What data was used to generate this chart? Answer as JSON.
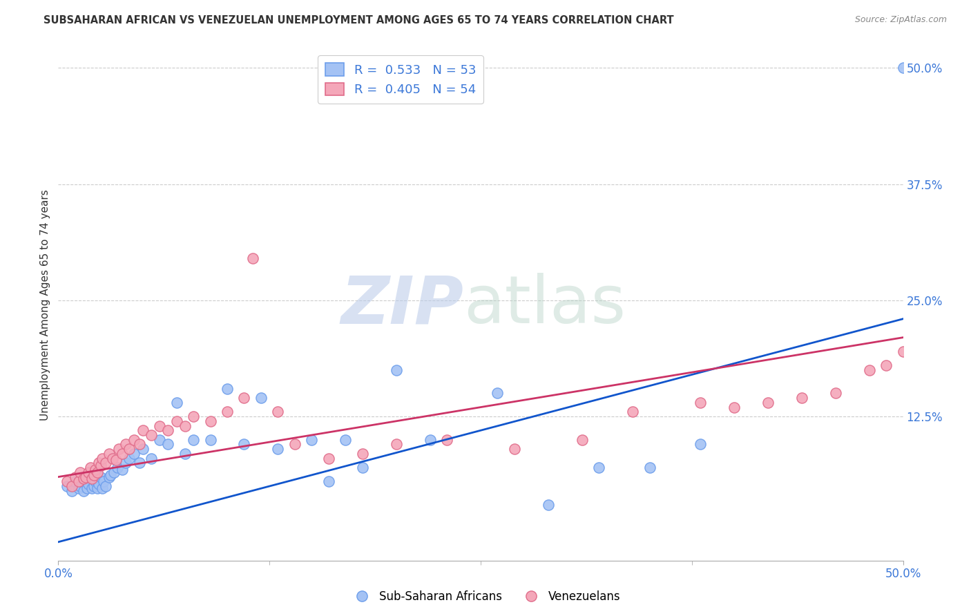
{
  "title": "SUBSAHARAN AFRICAN VS VENEZUELAN UNEMPLOYMENT AMONG AGES 65 TO 74 YEARS CORRELATION CHART",
  "source": "Source: ZipAtlas.com",
  "ylabel": "Unemployment Among Ages 65 to 74 years",
  "xlim": [
    0.0,
    0.5
  ],
  "ylim": [
    -0.03,
    0.52
  ],
  "blue_color": "#a4c2f4",
  "pink_color": "#f4a7b9",
  "blue_edge_color": "#6d9eeb",
  "pink_edge_color": "#e06c8a",
  "blue_line_color": "#1155cc",
  "pink_line_color": "#cc3366",
  "legend_blue_R": "0.533",
  "legend_blue_N": "53",
  "legend_pink_R": "0.405",
  "legend_pink_N": "54",
  "watermark_zip": "ZIP",
  "watermark_atlas": "atlas",
  "blue_scatter_x": [
    0.005,
    0.008,
    0.01,
    0.012,
    0.013,
    0.015,
    0.015,
    0.016,
    0.017,
    0.018,
    0.019,
    0.02,
    0.021,
    0.022,
    0.023,
    0.024,
    0.025,
    0.026,
    0.027,
    0.028,
    0.03,
    0.031,
    0.033,
    0.035,
    0.038,
    0.04,
    0.042,
    0.045,
    0.048,
    0.05,
    0.055,
    0.06,
    0.065,
    0.07,
    0.075,
    0.08,
    0.09,
    0.1,
    0.11,
    0.12,
    0.13,
    0.15,
    0.16,
    0.17,
    0.18,
    0.2,
    0.22,
    0.26,
    0.29,
    0.32,
    0.35,
    0.38,
    0.5
  ],
  "blue_scatter_y": [
    0.05,
    0.045,
    0.055,
    0.048,
    0.05,
    0.06,
    0.045,
    0.055,
    0.048,
    0.052,
    0.06,
    0.048,
    0.05,
    0.055,
    0.048,
    0.052,
    0.06,
    0.048,
    0.055,
    0.05,
    0.06,
    0.062,
    0.065,
    0.07,
    0.068,
    0.075,
    0.08,
    0.085,
    0.075,
    0.09,
    0.08,
    0.1,
    0.095,
    0.14,
    0.085,
    0.1,
    0.1,
    0.155,
    0.095,
    0.145,
    0.09,
    0.1,
    0.055,
    0.1,
    0.07,
    0.175,
    0.1,
    0.15,
    0.03,
    0.07,
    0.07,
    0.095,
    0.5
  ],
  "pink_scatter_x": [
    0.005,
    0.008,
    0.01,
    0.012,
    0.013,
    0.015,
    0.016,
    0.018,
    0.019,
    0.02,
    0.021,
    0.022,
    0.023,
    0.024,
    0.025,
    0.026,
    0.028,
    0.03,
    0.032,
    0.034,
    0.036,
    0.038,
    0.04,
    0.042,
    0.045,
    0.048,
    0.05,
    0.055,
    0.06,
    0.065,
    0.07,
    0.075,
    0.08,
    0.09,
    0.1,
    0.11,
    0.115,
    0.13,
    0.14,
    0.16,
    0.18,
    0.2,
    0.23,
    0.27,
    0.31,
    0.34,
    0.38,
    0.4,
    0.42,
    0.44,
    0.46,
    0.48,
    0.49,
    0.5
  ],
  "pink_scatter_y": [
    0.055,
    0.05,
    0.06,
    0.055,
    0.065,
    0.058,
    0.06,
    0.065,
    0.07,
    0.058,
    0.062,
    0.068,
    0.065,
    0.075,
    0.072,
    0.08,
    0.075,
    0.085,
    0.08,
    0.078,
    0.09,
    0.085,
    0.095,
    0.09,
    0.1,
    0.095,
    0.11,
    0.105,
    0.115,
    0.11,
    0.12,
    0.115,
    0.125,
    0.12,
    0.13,
    0.145,
    0.295,
    0.13,
    0.095,
    0.08,
    0.085,
    0.095,
    0.1,
    0.09,
    0.1,
    0.13,
    0.14,
    0.135,
    0.14,
    0.145,
    0.15,
    0.175,
    0.18,
    0.195
  ],
  "blue_line_x": [
    0.0,
    0.5
  ],
  "blue_line_y": [
    -0.01,
    0.23
  ],
  "pink_line_x": [
    0.0,
    0.5
  ],
  "pink_line_y": [
    0.06,
    0.21
  ],
  "grid_color": "#cccccc",
  "background_color": "#ffffff",
  "right_tick_color": "#3c78d8",
  "tick_label_color": "#3c78d8"
}
